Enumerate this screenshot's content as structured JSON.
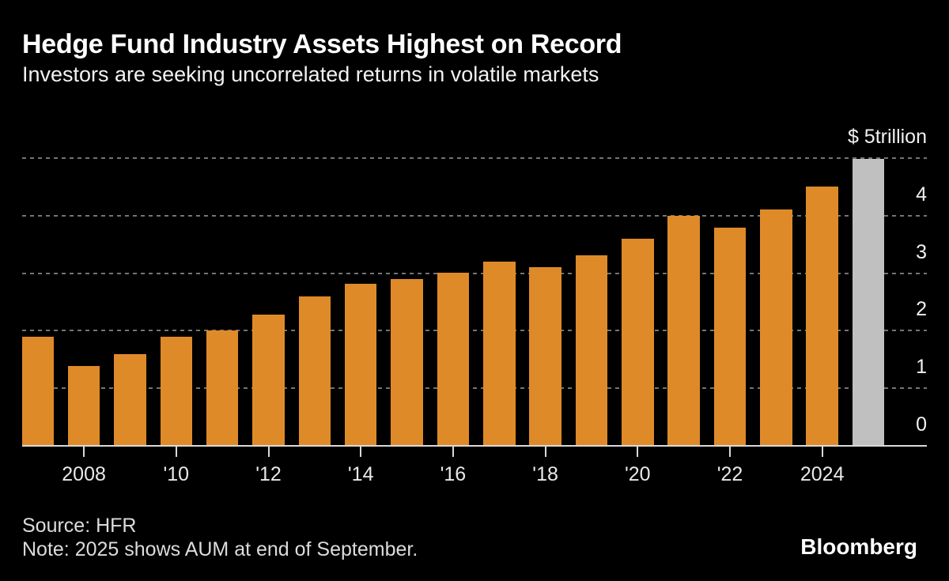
{
  "header": {
    "title": "Hedge Fund Industry Assets Highest on Record",
    "subtitle": "Investors are seeking uncorrelated returns in volatile markets"
  },
  "footer": {
    "source": "Source: HFR",
    "note": "Note: 2025 shows AUM at end of September.",
    "brand": "Bloomberg"
  },
  "colors": {
    "background": "#000000",
    "bar": "#DF8A28",
    "highlight_bar": "#C0C0C0",
    "gridline": "#747474",
    "axis": "#D9D9D9",
    "title_text": "#FFFFFF",
    "label_text": "#EFEFEF"
  },
  "chart_data": {
    "type": "bar",
    "title": "Hedge Fund Industry Assets Highest on Record",
    "subtitle": "Investors are seeking uncorrelated returns in volatile markets",
    "unit": "USD trillions (hedge fund industry AUM)",
    "ylim": [
      0,
      5
    ],
    "grid": "horizontal-dotted",
    "legend": "none",
    "categories": [
      2007,
      2008,
      2009,
      2010,
      2011,
      2012,
      2013,
      2014,
      2015,
      2016,
      2017,
      2018,
      2019,
      2020,
      2021,
      2022,
      2023,
      2024,
      2025
    ],
    "values": [
      1.9,
      1.39,
      1.6,
      1.9,
      2.0,
      2.28,
      2.6,
      2.81,
      2.9,
      3.01,
      3.2,
      3.1,
      3.31,
      3.6,
      4.0,
      3.79,
      4.11,
      4.5,
      4.98
    ],
    "highlight_year": 2025,
    "yticks": [
      {
        "value": 0,
        "label": "0"
      },
      {
        "value": 1,
        "label": "1"
      },
      {
        "value": 2,
        "label": "2"
      },
      {
        "value": 3,
        "label": "3"
      },
      {
        "value": 4,
        "label": "4"
      },
      {
        "value": 5,
        "label": "$ 5trillion"
      }
    ],
    "xticks": [
      {
        "year": 2008,
        "label": "2008"
      },
      {
        "year": 2010,
        "label": "'10"
      },
      {
        "year": 2012,
        "label": "'12"
      },
      {
        "year": 2014,
        "label": "'14"
      },
      {
        "year": 2016,
        "label": "'16"
      },
      {
        "year": 2018,
        "label": "'18"
      },
      {
        "year": 2020,
        "label": "'20"
      },
      {
        "year": 2022,
        "label": "'22"
      },
      {
        "year": 2024,
        "label": "2024"
      }
    ]
  }
}
